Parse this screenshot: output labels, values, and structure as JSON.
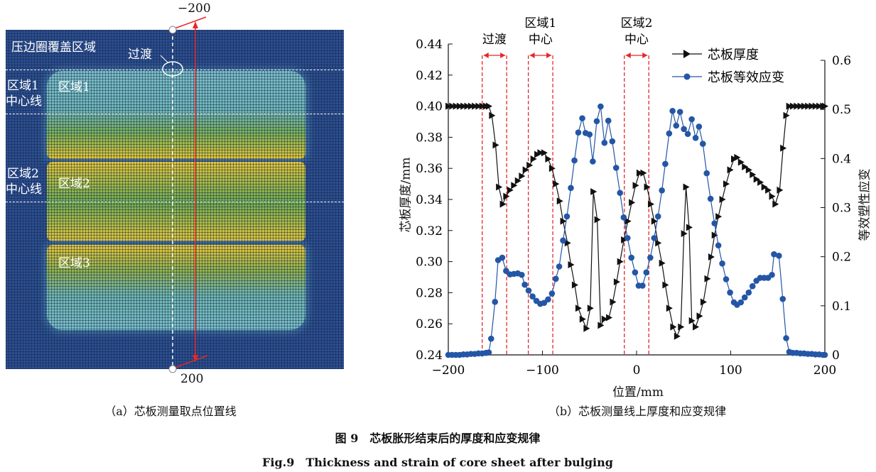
{
  "panel_a": {
    "labels": {
      "blankholder": "压边圈覆盖区域",
      "transition": "过渡",
      "zone1_centerline": [
        "区域1",
        "中心线"
      ],
      "zone2_centerline": [
        "区域2",
        "中心线"
      ],
      "zone1": "区域1",
      "zone2": "区域2",
      "zone3": "区域3",
      "start": "−200",
      "end": "200"
    },
    "caption": "（a）芯板测量取点位置线"
  },
  "panel_b": {
    "caption": "（b）芯板测量线上厚度和应变规律",
    "annotations": {
      "transition": "过渡",
      "zone1": [
        "区域1",
        "中心"
      ],
      "zone2": [
        "区域2",
        "中心"
      ]
    }
  },
  "figure_caption_cn": "图 9　芯板胀形结束后的厚度和应变规律",
  "figure_caption_en": "Fig.9　Thickness and strain of core sheet after bulging",
  "chart_data": {
    "type": "line",
    "xlabel": "位置/mm",
    "ylabel": "芯板厚度/mm",
    "ylabel_right": "等效塑性应变",
    "xlim": [
      -200,
      200
    ],
    "ylim": [
      0.24,
      0.44
    ],
    "ylim_right": [
      0,
      0.6
    ],
    "xticks": [
      "−200",
      "−100",
      "0",
      "100",
      "200"
    ],
    "xtick_values": [
      -200,
      -100,
      0,
      100,
      200
    ],
    "yticks": [
      "0.24",
      "0.26",
      "0.28",
      "0.30",
      "0.32",
      "0.34",
      "0.36",
      "0.38",
      "0.40",
      "0.42",
      "0.44"
    ],
    "ytick_values": [
      0.24,
      0.26,
      0.28,
      0.3,
      0.32,
      0.34,
      0.36,
      0.38,
      0.4,
      0.42,
      0.44
    ],
    "yticks_right": [
      "0",
      "0.1",
      "0.2",
      "0.3",
      "0.4",
      "0.5",
      "0.6"
    ],
    "ytick_right_values": [
      0,
      0.1,
      0.2,
      0.3,
      0.4,
      0.5,
      0.6
    ],
    "grid": false,
    "legend_position": "top-right",
    "region_boundaries": [
      [
        -164,
        -138
      ],
      [
        -115,
        -89
      ],
      [
        -13,
        13
      ]
    ],
    "colors": {
      "thickness": "#111111",
      "strain": "#2456a6",
      "boundary": "#e8262a"
    },
    "series": [
      {
        "name": "芯板厚度",
        "axis": "left",
        "marker": "triangle-right",
        "x": [
          -200,
          -196,
          -192,
          -188,
          -184,
          -180,
          -176,
          -172,
          -168,
          -164,
          -160,
          -157,
          -153.7,
          -149.8,
          -146.3,
          -142.2,
          -138.6,
          -134.5,
          -130.3,
          -126.2,
          -122,
          -118,
          -113.8,
          -109.7,
          -105.6,
          -102.3,
          -98.2,
          -94,
          -89.9,
          -85.8,
          -81.7,
          -78.1,
          -73.4,
          -69.8,
          -65.7,
          -61.9,
          -57.5,
          -53.3,
          -49.2,
          -45.9,
          -41.8,
          -38.2,
          -34.1,
          -29.4,
          -25.3,
          -21.2,
          -17.6,
          -13.5,
          -9.3,
          -5.2,
          -1.1,
          3,
          7.1,
          11,
          15.1,
          18.7,
          22.8,
          26.9,
          30.5,
          34.6,
          38.8,
          42.9,
          47,
          50.3,
          52.5,
          55.8,
          58.6,
          62.7,
          66.8,
          70.9,
          75.1,
          79.2,
          82.8,
          86.9,
          91,
          95.1,
          99.3,
          103.4,
          106.7,
          110.8,
          114.9,
          119.1,
          123.2,
          127.3,
          131.4,
          135.6,
          139.7,
          143.8,
          147.4,
          152,
          155.6,
          158.9,
          162,
          166,
          170,
          174,
          178,
          182,
          186,
          190,
          194,
          198,
          200
        ],
        "y": [
          0.4,
          0.4,
          0.4,
          0.4,
          0.4,
          0.4,
          0.4,
          0.4,
          0.4,
          0.4,
          0.4,
          0.4,
          0.394,
          0.375,
          0.348,
          0.337,
          0.342,
          0.346,
          0.349,
          0.352,
          0.355,
          0.359,
          0.362,
          0.366,
          0.369,
          0.37,
          0.37,
          0.366,
          0.36,
          0.35,
          0.339,
          0.326,
          0.312,
          0.298,
          0.285,
          0.27,
          0.263,
          0.257,
          0.27,
          0.345,
          0.327,
          0.259,
          0.263,
          0.264,
          0.274,
          0.287,
          0.3,
          0.314,
          0.326,
          0.338,
          0.349,
          0.357,
          0.357,
          0.348,
          0.337,
          0.326,
          0.312,
          0.299,
          0.285,
          0.27,
          0.258,
          0.252,
          0.258,
          0.318,
          0.348,
          0.322,
          0.262,
          0.258,
          0.265,
          0.274,
          0.289,
          0.303,
          0.317,
          0.329,
          0.34,
          0.35,
          0.359,
          0.366,
          0.367,
          0.364,
          0.361,
          0.359,
          0.356,
          0.353,
          0.351,
          0.348,
          0.346,
          0.342,
          0.337,
          0.346,
          0.373,
          0.394,
          0.4,
          0.4,
          0.4,
          0.4,
          0.4,
          0.4,
          0.4,
          0.4,
          0.4,
          0.4,
          0.4
        ]
      },
      {
        "name": "芯板等效应变",
        "axis": "right",
        "marker": "circle",
        "x": [
          -200,
          -196,
          -192,
          -188,
          -184,
          -180,
          -176,
          -172,
          -168,
          -164,
          -160,
          -157,
          -154.5,
          -150.4,
          -147.1,
          -142.7,
          -138.6,
          -134.5,
          -130.3,
          -126.2,
          -122,
          -118.8,
          -114.7,
          -110.5,
          -106.4,
          -102.3,
          -98.2,
          -94,
          -89.9,
          -85.8,
          -82.2,
          -78.1,
          -74,
          -69.8,
          -66,
          -61.9,
          -57.7,
          -54.2,
          -50,
          -46.5,
          -42.3,
          -38.2,
          -34.1,
          -30,
          -25.8,
          -21.7,
          -17.6,
          -13.7,
          -9.6,
          -5.5,
          -1.6,
          2.2,
          6.3,
          10.4,
          14.6,
          18.7,
          22.8,
          26.9,
          30.5,
          34.6,
          38.2,
          42.1,
          46.2,
          50.3,
          54.4,
          58.6,
          62.7,
          66.3,
          70.4,
          74.5,
          78.6,
          82.8,
          86.9,
          91,
          95.1,
          99.3,
          103.4,
          106.7,
          110.8,
          114.9,
          119.1,
          123.2,
          127.3,
          131.4,
          135.6,
          139.7,
          143.8,
          146,
          151.2,
          155.3,
          158.9,
          162.2,
          166,
          170,
          174,
          178,
          182,
          186,
          190,
          194,
          198,
          200
        ],
        "y": [
          0,
          0,
          0,
          0,
          0.001,
          0.001,
          0.002,
          0.002,
          0.003,
          0.003,
          0.004,
          0.005,
          0.033,
          0.108,
          0.193,
          0.198,
          0.171,
          0.164,
          0.165,
          0.166,
          0.163,
          0.143,
          0.131,
          0.119,
          0.11,
          0.104,
          0.106,
          0.113,
          0.125,
          0.155,
          0.18,
          0.233,
          0.282,
          0.34,
          0.396,
          0.453,
          0.482,
          0.452,
          0.449,
          0.394,
          0.476,
          0.506,
          0.432,
          0.477,
          0.435,
          0.381,
          0.33,
          0.28,
          0.238,
          0.198,
          0.168,
          0.141,
          0.141,
          0.168,
          0.198,
          0.238,
          0.282,
          0.335,
          0.389,
          0.451,
          0.497,
          0.467,
          0.495,
          0.46,
          0.45,
          0.48,
          0.442,
          0.465,
          0.43,
          0.37,
          0.318,
          0.268,
          0.223,
          0.186,
          0.154,
          0.127,
          0.107,
          0.102,
          0.107,
          0.117,
          0.127,
          0.14,
          0.151,
          0.157,
          0.157,
          0.157,
          0.163,
          0.205,
          0.202,
          0.114,
          0.034,
          0.006,
          0.004,
          0.004,
          0.003,
          0.003,
          0.002,
          0.002,
          0.001,
          0.001,
          0,
          0
        ]
      }
    ]
  }
}
